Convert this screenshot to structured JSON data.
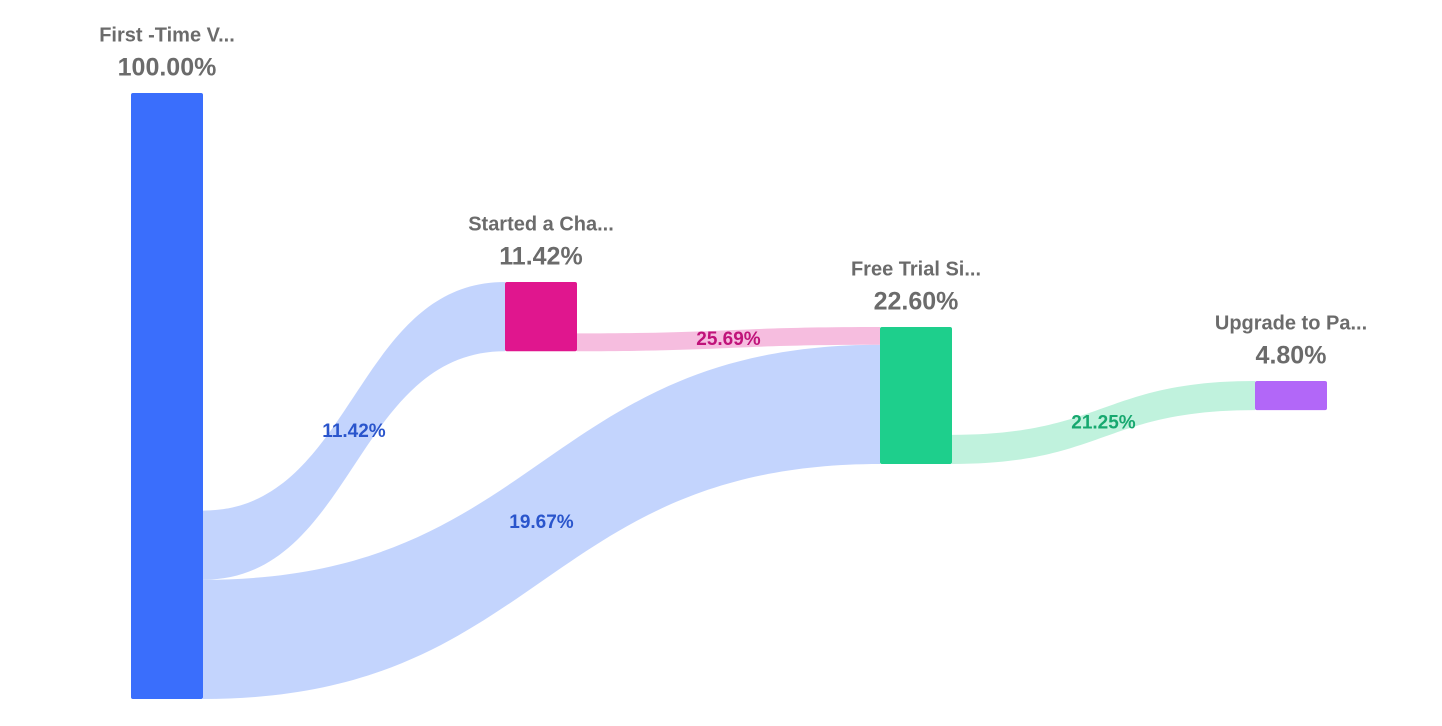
{
  "chart_data": {
    "type": "sankey",
    "nodes": [
      {
        "name": "First -Time V...",
        "value": 100,
        "value_label": "100.00%",
        "color": "#3a6efc"
      },
      {
        "name": "Started a Cha...",
        "value": 11.42,
        "value_label": "11.42%",
        "color": "#e0168e"
      },
      {
        "name": "Free Trial Si...",
        "value": 22.6,
        "value_label": "22.60%",
        "color": "#1ecf8c"
      },
      {
        "name": "Upgrade to Pa...",
        "value": 4.8,
        "value_label": "4.80%",
        "color": "#b267f8"
      }
    ],
    "links": {
      "source": [
        0,
        0,
        1,
        2
      ],
      "target": [
        1,
        2,
        2,
        3
      ],
      "values": [
        11.42,
        19.67,
        25.69,
        21.25
      ],
      "value_labels": [
        "11.42%",
        "19.67%",
        "25.69%",
        "21.25%"
      ],
      "colors": [
        "#c0d2fd",
        "#c0d2fd",
        "#f6b9dd",
        "#bdf1db"
      ],
      "label_colors": [
        "#2a55cc",
        "#2a55cc",
        "#c0137a",
        "#17a86f"
      ]
    }
  }
}
